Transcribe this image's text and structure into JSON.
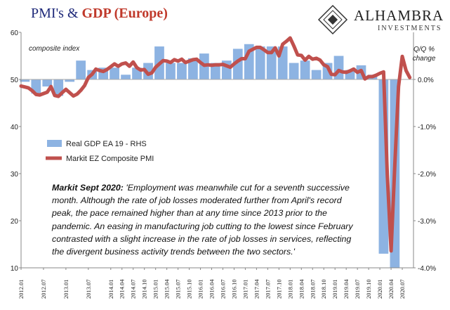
{
  "title": {
    "part1": "PMI's & ",
    "part2": "GDP",
    "part3": " (Europe)"
  },
  "logo": {
    "name": "ALHAMBRA",
    "sub": "INVESTMENTS"
  },
  "annotation": {
    "source": "Markit Sept 2020:",
    "quote": " 'Employment was meanwhile cut for a seventh successive month. Although the rate of job losses moderated further from April's record peak, the pace remained higher than at any time since 2013  prior to the pandemic. An easing in manufacturing job cutting to the lowest since February contrasted with a slight increase in the rate of job losses in services, reflecting the divergent business activity trends between the two sectors.'"
  },
  "colors": {
    "bars": "#8db3e2",
    "line": "#c0504d",
    "axis": "#888888",
    "title_blue": "#1f2a7a",
    "title_red": "#c0392b"
  },
  "chart_data": {
    "type": "bar+line",
    "left_axis": {
      "label": "composite index",
      "min": 10,
      "max": 60,
      "ticks": [
        "10",
        "20",
        "30",
        "40",
        "50",
        "60"
      ]
    },
    "right_axis": {
      "label_line1": "Q/Q %",
      "label_line2": "change",
      "min": -4.0,
      "max": 1.0,
      "ticks": [
        "-4.0%",
        "-3.0%",
        "-2.0%",
        "-1.0%",
        "0.0%"
      ]
    },
    "x_tick_labels": [
      "2012.01",
      "2012.07",
      "2013.01",
      "2013.07",
      "2014.01",
      "2014.04",
      "2014.07",
      "2014.10",
      "2015.01",
      "2015.04",
      "2015.07",
      "2015.10",
      "2016.01",
      "2016.04",
      "2016.07",
      "2016.10",
      "2017.01",
      "2017.04",
      "2017.07",
      "2017.10",
      "2018.01",
      "2018.04",
      "2018.07",
      "2018.10",
      "2019.01",
      "2019.04",
      "2019.07",
      "2019.10",
      "2020.01",
      "2020.04",
      "2020.07"
    ],
    "legend": [
      {
        "name": "Real GDP EA 19 - RHS",
        "kind": "bar"
      },
      {
        "name": "Markit EZ Composite PMI",
        "kind": "line"
      }
    ],
    "gdp_quarters": [
      "2012Q1",
      "2012Q2",
      "2012Q3",
      "2012Q4",
      "2013Q1",
      "2013Q2",
      "2013Q3",
      "2013Q4",
      "2014Q1",
      "2014Q2",
      "2014Q3",
      "2014Q4",
      "2015Q1",
      "2015Q2",
      "2015Q3",
      "2015Q4",
      "2016Q1",
      "2016Q2",
      "2016Q3",
      "2016Q4",
      "2017Q1",
      "2017Q2",
      "2017Q3",
      "2017Q4",
      "2018Q1",
      "2018Q2",
      "2018Q3",
      "2018Q4",
      "2019Q1",
      "2019Q2",
      "2019Q3",
      "2019Q4",
      "2020Q1",
      "2020Q2",
      "2020Q3"
    ],
    "gdp_values": [
      -0.05,
      -0.3,
      -0.15,
      -0.35,
      -0.05,
      0.4,
      0.2,
      0.25,
      0.25,
      0.1,
      0.25,
      0.35,
      0.7,
      0.35,
      0.35,
      0.45,
      0.55,
      0.35,
      0.4,
      0.65,
      0.75,
      0.7,
      0.7,
      0.7,
      0.35,
      0.4,
      0.2,
      0.35,
      0.5,
      0.2,
      0.3,
      0.1,
      -3.7,
      -4.0,
      0.0
    ],
    "pmi_months": [
      "2012.01",
      "2012.02",
      "2012.03",
      "2012.04",
      "2012.05",
      "2012.06",
      "2012.07",
      "2012.08",
      "2012.09",
      "2012.10",
      "2012.11",
      "2012.12",
      "2013.01",
      "2013.02",
      "2013.03",
      "2013.04",
      "2013.05",
      "2013.06",
      "2013.07",
      "2013.08",
      "2013.09",
      "2013.10",
      "2013.11",
      "2013.12",
      "2014.01",
      "2014.02",
      "2014.03",
      "2014.04",
      "2014.05",
      "2014.06",
      "2014.07",
      "2014.08",
      "2014.09",
      "2014.10",
      "2014.11",
      "2014.12",
      "2015.01",
      "2015.02",
      "2015.03",
      "2015.04",
      "2015.05",
      "2015.06",
      "2015.07",
      "2015.08",
      "2015.09",
      "2015.10",
      "2015.11",
      "2015.12",
      "2016.01",
      "2016.02",
      "2016.03",
      "2016.04",
      "2016.05",
      "2016.06",
      "2016.07",
      "2016.08",
      "2016.09",
      "2016.10",
      "2016.11",
      "2016.12",
      "2017.01",
      "2017.02",
      "2017.03",
      "2017.04",
      "2017.05",
      "2017.06",
      "2017.07",
      "2017.08",
      "2017.09",
      "2017.10",
      "2017.11",
      "2017.12",
      "2018.01",
      "2018.02",
      "2018.03",
      "2018.04",
      "2018.05",
      "2018.06",
      "2018.07",
      "2018.08",
      "2018.09",
      "2018.10",
      "2018.11",
      "2018.12",
      "2019.01",
      "2019.02",
      "2019.03",
      "2019.04",
      "2019.05",
      "2019.06",
      "2019.07",
      "2019.08",
      "2019.09",
      "2019.10",
      "2019.11",
      "2019.12",
      "2020.01",
      "2020.02",
      "2020.03",
      "2020.04",
      "2020.05",
      "2020.06",
      "2020.07",
      "2020.08",
      "2020.09"
    ],
    "pmi_values": [
      48.6,
      48.4,
      48.2,
      47.6,
      46.8,
      46.7,
      47.0,
      47.3,
      48.5,
      46.6,
      46.4,
      47.2,
      47.9,
      47.2,
      46.5,
      46.9,
      47.7,
      48.7,
      50.4,
      51.1,
      52.2,
      51.9,
      51.7,
      52.1,
      52.7,
      53.3,
      52.8,
      53.3,
      53.5,
      52.8,
      53.7,
      52.5,
      52.0,
      52.1,
      51.1,
      51.4,
      52.6,
      53.3,
      54.0,
      53.9,
      53.6,
      54.2,
      53.9,
      54.3,
      53.6,
      53.9,
      54.2,
      54.3,
      53.6,
      53.0,
      53.1,
      53.0,
      53.1,
      53.1,
      53.2,
      52.9,
      52.6,
      53.3,
      53.9,
      54.4,
      54.4,
      56.0,
      56.4,
      56.8,
      56.8,
      56.3,
      55.7,
      55.7,
      56.7,
      55.0,
      57.5,
      58.1,
      58.8,
      57.1,
      55.2,
      55.1,
      54.1,
      54.9,
      54.3,
      54.5,
      54.1,
      53.1,
      52.7,
      51.1,
      51.0,
      51.9,
      51.6,
      51.5,
      51.8,
      52.2,
      51.5,
      51.9,
      50.1,
      50.6,
      50.6,
      50.9,
      51.3,
      51.6,
      29.7,
      13.6,
      31.9,
      48.5,
      54.9,
      51.9,
      50.4
    ]
  }
}
